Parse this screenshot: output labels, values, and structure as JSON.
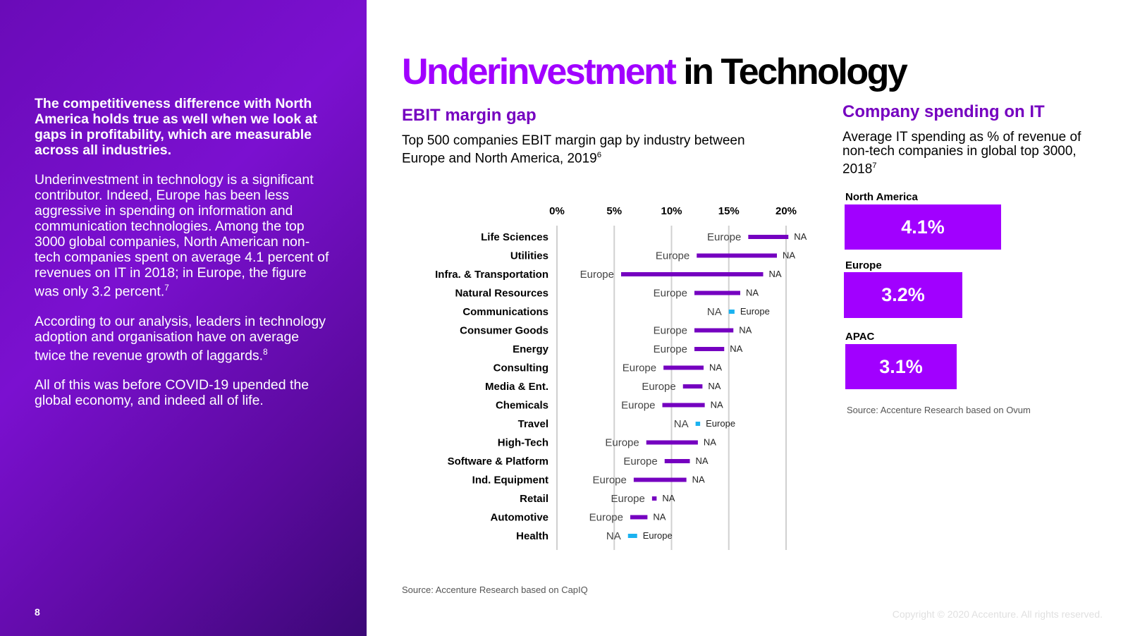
{
  "left": {
    "lead": "The competitiveness difference with North America holds true as well when we look at gaps in profitability, which are measurable across all industries.",
    "para1": "Underinvestment in technology is a significant contributor. Indeed, Europe has been less aggressive in spending on information and communication technologies. Among the top 3000 global companies, North American non-tech companies spent on average 4.1 percent of revenues on IT in 2018; in Europe, the figure was only 3.2 percent.",
    "para1_sup": "7",
    "para2": "According to our analysis, leaders in technology adoption and organisation have on average twice the revenue growth of laggards.",
    "para2_sup": "8",
    "para3": "All of this was before COVID-19 upended the global economy, and indeed all of life.",
    "page_number": "8"
  },
  "title": {
    "accent": "Underinvestment",
    "rest": "in Technology"
  },
  "ebit": {
    "heading": "EBIT margin gap",
    "description": "Top 500 companies EBIT margin gap by industry between Europe and North America, 2019",
    "description_sup": "6",
    "source": "Source: Accenture Research based on CapIQ"
  },
  "it_spending": {
    "heading": "Company spending on IT",
    "description": "Average IT spending as % of revenue of non-tech companies in global top 3000, 2018",
    "description_sup": "7",
    "regions": [
      {
        "label": "North America",
        "value_label": "4.1%",
        "value": 4.1
      },
      {
        "label": "Europe",
        "value_label": "3.2%",
        "value": 3.2
      },
      {
        "label": "APAC",
        "value_label": "3.1%",
        "value": 3.1
      }
    ],
    "source": "Source: Accenture Research based on Ovum"
  },
  "copyright": "Copyright © 2020 Accenture. All rights reserved.",
  "colors": {
    "accent": "#a100ff",
    "dark_purple": "#7500c0",
    "positive_bar": "#7500c0",
    "negative_bar": "#1ab2f0"
  },
  "chart_data": {
    "type": "range-bar",
    "title": "Top 500 companies EBIT margin gap by industry between Europe and North America, 2019",
    "x_ticks": [
      "0%",
      "5%",
      "10%",
      "15%",
      "20%"
    ],
    "xlim": [
      0,
      20
    ],
    "series_labels": {
      "europe": "Europe",
      "north_america": "NA"
    },
    "categories": [
      "Life Sciences",
      "Utilities",
      "Infra. & Transportation",
      "Natural Resources",
      "Communications",
      "Consumer Goods",
      "Energy",
      "Consulting",
      "Media & Ent.",
      "Chemicals",
      "Travel",
      "High-Tech",
      "Software & Platform",
      "Ind. Equipment",
      "Retail",
      "Automotive",
      "Health"
    ],
    "europe": [
      16.7,
      12.2,
      5.6,
      12.0,
      15.5,
      12.0,
      12.0,
      9.3,
      11.0,
      9.2,
      12.5,
      7.8,
      9.4,
      6.7,
      8.3,
      6.4,
      7.0
    ],
    "north_america": [
      20.2,
      19.2,
      18.0,
      16.0,
      15.0,
      15.4,
      14.6,
      12.8,
      12.7,
      12.9,
      12.1,
      12.3,
      11.6,
      11.3,
      8.7,
      7.9,
      6.2
    ]
  }
}
